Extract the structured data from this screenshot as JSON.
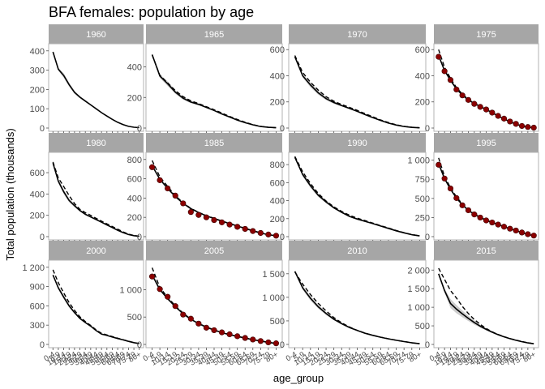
{
  "chart_data": {
    "type": "line",
    "title": "BFA females: population by age",
    "xlabel": "age_group",
    "ylabel": "Total population (thousands)",
    "categories": [
      "0-4",
      "5-9",
      "10-14",
      "15-19",
      "20-24",
      "25-29",
      "30-34",
      "35-39",
      "40-44",
      "45-49",
      "50-54",
      "55-59",
      "60-64",
      "65-69",
      "70-74",
      "75-79",
      "80+"
    ],
    "panels": [
      {
        "year": "1960",
        "ylim": [
          0,
          420
        ],
        "yticks": [
          0,
          100,
          200,
          300,
          400
        ],
        "ytick_labels": [
          "0",
          "100",
          "200",
          "300",
          "400"
        ],
        "estimate": [
          395,
          305,
          272,
          225,
          185,
          160,
          140,
          120,
          100,
          80,
          62,
          45,
          30,
          18,
          9,
          4,
          2
        ],
        "ribbon_width": [
          0,
          8,
          12,
          10,
          8,
          6,
          5,
          4,
          3,
          2,
          2,
          1,
          1,
          0,
          0,
          0,
          0
        ],
        "projection": null,
        "observed": null
      },
      {
        "year": "1965",
        "ylim": [
          0,
          530
        ],
        "yticks": [
          0,
          200,
          400
        ],
        "ytick_labels": [
          "0",
          "200",
          "400"
        ],
        "estimate": [
          480,
          340,
          290,
          235,
          195,
          170,
          155,
          135,
          115,
          92,
          72,
          52,
          35,
          21,
          10,
          5,
          2
        ],
        "ribbon_width": [
          0,
          12,
          15,
          12,
          10,
          8,
          6,
          4,
          3,
          2,
          2,
          1,
          1,
          0,
          0,
          0,
          0
        ],
        "projection": [
          478,
          345,
          295,
          245,
          205,
          178,
          160,
          140,
          120,
          98,
          76,
          56,
          38,
          22,
          11,
          5,
          2
        ],
        "observed": null
      },
      {
        "year": "1970",
        "ylim": [
          0,
          620
        ],
        "yticks": [
          0,
          200,
          400,
          600
        ],
        "ytick_labels": [
          "0",
          "200",
          "400",
          "600"
        ],
        "estimate": [
          545,
          400,
          330,
          270,
          225,
          195,
          172,
          150,
          128,
          103,
          80,
          58,
          38,
          23,
          12,
          5,
          2
        ],
        "ribbon_width": [
          0,
          14,
          18,
          15,
          12,
          10,
          7,
          5,
          4,
          3,
          2,
          1,
          1,
          0,
          0,
          0,
          0
        ],
        "projection": [
          555,
          425,
          350,
          290,
          240,
          205,
          180,
          158,
          135,
          110,
          86,
          62,
          42,
          25,
          13,
          6,
          2
        ],
        "observed": null
      },
      {
        "year": "1975",
        "ylim": [
          0,
          620
        ],
        "yticks": [
          0,
          200,
          400,
          600
        ],
        "ytick_labels": [
          "0",
          "200",
          "400",
          "600"
        ],
        "estimate": [
          555,
          440,
          365,
          300,
          252,
          215,
          188,
          165,
          142,
          118,
          92,
          70,
          48,
          30,
          15,
          7,
          3
        ],
        "ribbon_width": [
          0,
          10,
          12,
          10,
          8,
          6,
          5,
          4,
          3,
          2,
          2,
          1,
          1,
          0,
          0,
          0,
          0
        ],
        "projection": [
          600,
          465,
          380,
          310,
          258,
          220,
          192,
          168,
          145,
          120,
          94,
          71,
          49,
          31,
          16,
          7,
          3
        ],
        "observed": [
          545,
          435,
          368,
          295,
          250,
          215,
          185,
          162,
          142,
          118,
          93,
          72,
          50,
          32,
          16,
          8,
          3
        ]
      },
      {
        "year": "1980",
        "ylim": [
          0,
          760
        ],
        "yticks": [
          0,
          200,
          400,
          600
        ],
        "ytick_labels": [
          "0",
          "200",
          "400",
          "600"
        ],
        "estimate": [
          690,
          520,
          420,
          340,
          290,
          245,
          210,
          185,
          160,
          135,
          110,
          85,
          60,
          38,
          20,
          9,
          3
        ],
        "ribbon_width": [
          0,
          18,
          22,
          18,
          14,
          10,
          8,
          6,
          4,
          3,
          2,
          2,
          1,
          0,
          0,
          0,
          0
        ],
        "projection": [
          700,
          550,
          470,
          385,
          310,
          255,
          225,
          200,
          172,
          145,
          120,
          95,
          70,
          45,
          24,
          11,
          4
        ],
        "observed": null
      },
      {
        "year": "1985",
        "ylim": [
          0,
          840
        ],
        "yticks": [
          0,
          200,
          400,
          600,
          800
        ],
        "ytick_labels": [
          "0",
          "200",
          "400",
          "600",
          "800"
        ],
        "estimate": [
          735,
          595,
          500,
          415,
          345,
          290,
          250,
          215,
          188,
          160,
          135,
          110,
          85,
          60,
          38,
          20,
          8
        ],
        "ribbon_width": [
          0,
          10,
          12,
          10,
          8,
          6,
          5,
          4,
          3,
          2,
          2,
          1,
          1,
          0,
          0,
          0,
          0
        ],
        "projection": [
          790,
          620,
          520,
          425,
          350,
          293,
          252,
          218,
          190,
          162,
          137,
          112,
          87,
          62,
          40,
          21,
          9
        ],
        "observed": [
          720,
          585,
          500,
          425,
          345,
          255,
          225,
          200,
          172,
          148,
          125,
          102,
          80,
          58,
          38,
          22,
          10
        ]
      },
      {
        "year": "1990",
        "ylim": [
          0,
          900
        ],
        "yticks": [
          0,
          200,
          400,
          600,
          800
        ],
        "ytick_labels": [
          "0",
          "200",
          "400",
          "600",
          "800"
        ],
        "estimate": [
          880,
          690,
          565,
          460,
          385,
          320,
          270,
          225,
          195,
          170,
          145,
          118,
          92,
          65,
          42,
          22,
          8
        ],
        "ribbon_width": [
          0,
          20,
          22,
          18,
          14,
          10,
          8,
          6,
          5,
          4,
          3,
          2,
          1,
          0,
          0,
          0,
          0
        ],
        "projection": [
          890,
          720,
          590,
          480,
          395,
          330,
          280,
          238,
          205,
          178,
          150,
          122,
          96,
          68,
          44,
          23,
          9
        ],
        "observed": null
      },
      {
        "year": "1995",
        "ylim": [
          0,
          1060
        ],
        "yticks": [
          0,
          250,
          500,
          750,
          1000
        ],
        "ytick_labels": [
          "0",
          "250",
          "500",
          "750",
          "1 000"
        ],
        "estimate": [
          955,
          760,
          620,
          505,
          415,
          345,
          292,
          250,
          215,
          185,
          158,
          130,
          104,
          78,
          52,
          30,
          12
        ],
        "ribbon_width": [
          0,
          14,
          16,
          14,
          10,
          8,
          6,
          5,
          4,
          3,
          2,
          2,
          1,
          0,
          0,
          0,
          0
        ],
        "projection": [
          1030,
          790,
          640,
          520,
          425,
          350,
          296,
          253,
          218,
          188,
          160,
          132,
          106,
          80,
          54,
          31,
          13
        ],
        "observed": [
          940,
          760,
          630,
          505,
          410,
          345,
          290,
          250,
          212,
          185,
          158,
          130,
          104,
          80,
          54,
          32,
          14
        ]
      },
      {
        "year": "2000",
        "ylim": [
          0,
          1260
        ],
        "yticks": [
          0,
          300,
          600,
          900,
          1200
        ],
        "ytick_labels": [
          "0",
          "300",
          "600",
          "900",
          "1 200"
        ],
        "estimate": [
          1080,
          880,
          735,
          600,
          495,
          405,
          340,
          285,
          215,
          160,
          140,
          115,
          92,
          70,
          48,
          28,
          12
        ],
        "ribbon_width": [
          0,
          24,
          30,
          24,
          18,
          14,
          10,
          8,
          6,
          5,
          4,
          3,
          2,
          1,
          0,
          0,
          0
        ],
        "projection": [
          1160,
          960,
          800,
          650,
          530,
          430,
          355,
          295,
          225,
          172,
          148,
          122,
          97,
          73,
          50,
          29,
          13
        ],
        "observed": null
      },
      {
        "year": "2005",
        "ylim": [
          0,
          1480
        ],
        "yticks": [
          0,
          500,
          1000
        ],
        "ytick_labels": [
          "0",
          "500",
          "1 000"
        ],
        "estimate": [
          1270,
          1000,
          835,
          690,
          560,
          460,
          380,
          315,
          262,
          215,
          178,
          146,
          116,
          88,
          62,
          38,
          18
        ],
        "ribbon_width": [
          0,
          16,
          18,
          15,
          12,
          10,
          8,
          6,
          5,
          4,
          3,
          2,
          2,
          1,
          0,
          0,
          0
        ],
        "projection": [
          1400,
          1040,
          860,
          705,
          570,
          465,
          383,
          318,
          265,
          218,
          180,
          148,
          118,
          90,
          63,
          39,
          19
        ],
        "observed": [
          1240,
          1010,
          870,
          700,
          545,
          470,
          380,
          305,
          260,
          220,
          185,
          150,
          118,
          90,
          62,
          38,
          20
        ]
      },
      {
        "year": "2010",
        "ylim": [
          0,
          1720
        ],
        "yticks": [
          0,
          500,
          1000,
          1500
        ],
        "ytick_labels": [
          "0",
          "500",
          "1 000",
          "1 500"
        ],
        "estimate": [
          1550,
          1200,
          980,
          800,
          655,
          535,
          440,
          360,
          295,
          238,
          192,
          153,
          118,
          88,
          60,
          35,
          15
        ],
        "ribbon_width": [
          0,
          40,
          50,
          40,
          30,
          22,
          16,
          12,
          8,
          6,
          4,
          3,
          2,
          1,
          0,
          0,
          0
        ],
        "projection": [
          1540,
          1280,
          1060,
          870,
          710,
          570,
          460,
          370,
          300,
          240,
          195,
          155,
          120,
          90,
          62,
          36,
          16
        ],
        "observed": null
      },
      {
        "year": "2015",
        "ylim": [
          0,
          2180
        ],
        "yticks": [
          0,
          500,
          1000,
          1500,
          2000
        ],
        "ytick_labels": [
          "0",
          "500",
          "1 000",
          "1 500",
          "2 000"
        ],
        "estimate": [
          1900,
          1450,
          1100,
          950,
          820,
          700,
          590,
          490,
          405,
          330,
          262,
          205,
          155,
          112,
          75,
          42,
          18
        ],
        "ribbon_width": [
          0,
          60,
          120,
          110,
          90,
          70,
          55,
          40,
          30,
          20,
          14,
          10,
          6,
          3,
          0,
          0,
          0
        ],
        "projection": [
          2050,
          1750,
          1450,
          1250,
          1020,
          830,
          670,
          540,
          430,
          340,
          268,
          210,
          160,
          115,
          78,
          44,
          19
        ],
        "observed": null
      }
    ]
  }
}
